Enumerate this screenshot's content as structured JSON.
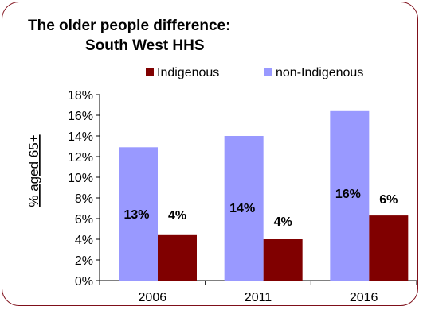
{
  "title": {
    "line1": "The older people difference:",
    "line2": "South West HHS"
  },
  "colors": {
    "frame": "#7f0f1a",
    "indigenous": "#800000",
    "non_indigenous": "#9999ff"
  },
  "chart_data": {
    "type": "bar",
    "title": "The older people difference: South West HHS",
    "xlabel": "",
    "ylabel": "% aged 65+",
    "ylim": [
      0,
      18
    ],
    "yticks": [
      "0%",
      "2%",
      "4%",
      "6%",
      "8%",
      "10%",
      "12%",
      "14%",
      "16%",
      "18%"
    ],
    "categories": [
      "2006",
      "2011",
      "2016"
    ],
    "legend_position": "top",
    "grid": false,
    "series": [
      {
        "name": "non-Indigenous",
        "color": "#9999ff",
        "values": [
          12.9,
          14.0,
          16.4
        ],
        "labels": [
          "13%",
          "14%",
          "16%"
        ]
      },
      {
        "name": "Indigenous",
        "color": "#800000",
        "values": [
          4.4,
          4.0,
          6.3
        ],
        "labels": [
          "4%",
          "4%",
          "6%"
        ]
      }
    ],
    "legend_order": [
      "Indigenous",
      "non-Indigenous"
    ]
  }
}
